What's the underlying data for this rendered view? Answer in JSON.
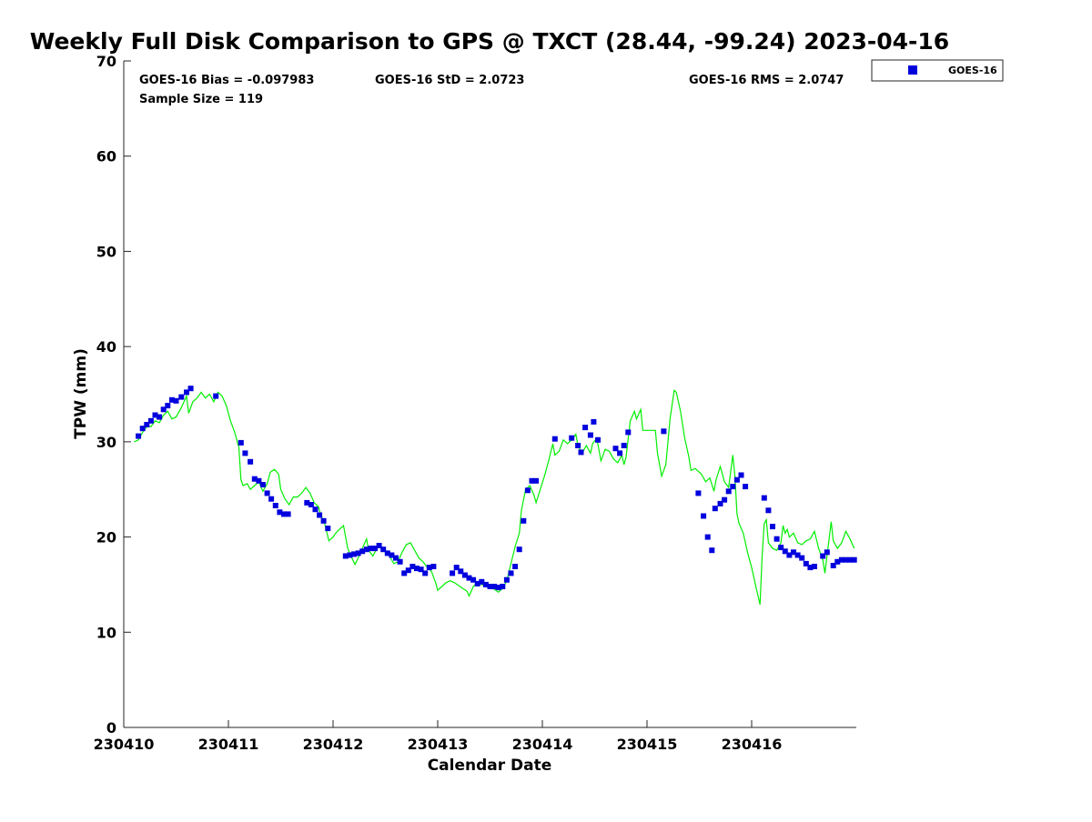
{
  "chart_data": {
    "type": "scatter",
    "title": "Weekly Full Disk Comparison to GPS @ TXCT (28.44, -99.24) 2023-04-16",
    "xlabel": "Calendar Date",
    "ylabel": "TPW (mm)",
    "xlim": [
      0,
      7
    ],
    "ylim": [
      0,
      70
    ],
    "x_tick_labels": [
      "230410",
      "230411",
      "230412",
      "230413",
      "230414",
      "230415",
      "230416"
    ],
    "y_ticks": [
      0,
      10,
      20,
      30,
      40,
      50,
      60,
      70
    ],
    "grid": false,
    "legend_placement": "top-right, outside plot",
    "stats": {
      "bias": "GOES-16 Bias = -0.097983",
      "std": "GOES-16 StD = 2.0723",
      "rms": "GOES-16 RMS = 2.0747",
      "sample": "Sample Size = 119"
    },
    "series": [
      {
        "name": "GOES-16",
        "kind": "markers",
        "color": "#0000dd",
        "points": [
          [
            0.14,
            30.6
          ],
          [
            0.18,
            31.4
          ],
          [
            0.22,
            31.8
          ],
          [
            0.26,
            32.2
          ],
          [
            0.3,
            32.8
          ],
          [
            0.34,
            32.6
          ],
          [
            0.38,
            33.4
          ],
          [
            0.42,
            33.8
          ],
          [
            0.46,
            34.4
          ],
          [
            0.5,
            34.3
          ],
          [
            0.55,
            34.7
          ],
          [
            0.6,
            35.2
          ],
          [
            0.64,
            35.6
          ],
          [
            0.88,
            34.8
          ],
          [
            1.12,
            29.9
          ],
          [
            1.16,
            28.8
          ],
          [
            1.21,
            27.9
          ],
          [
            1.25,
            26.1
          ],
          [
            1.29,
            25.9
          ],
          [
            1.33,
            25.5
          ],
          [
            1.37,
            24.6
          ],
          [
            1.41,
            24.0
          ],
          [
            1.45,
            23.3
          ],
          [
            1.49,
            22.6
          ],
          [
            1.53,
            22.4
          ],
          [
            1.57,
            22.4
          ],
          [
            1.75,
            23.6
          ],
          [
            1.79,
            23.4
          ],
          [
            1.83,
            22.9
          ],
          [
            1.87,
            22.3
          ],
          [
            1.91,
            21.7
          ],
          [
            1.95,
            20.9
          ],
          [
            2.12,
            18.0
          ],
          [
            2.16,
            18.1
          ],
          [
            2.2,
            18.2
          ],
          [
            2.24,
            18.3
          ],
          [
            2.28,
            18.5
          ],
          [
            2.32,
            18.7
          ],
          [
            2.36,
            18.8
          ],
          [
            2.4,
            18.8
          ],
          [
            2.44,
            19.1
          ],
          [
            2.48,
            18.7
          ],
          [
            2.52,
            18.3
          ],
          [
            2.56,
            18.1
          ],
          [
            2.6,
            17.8
          ],
          [
            2.64,
            17.4
          ],
          [
            2.68,
            16.2
          ],
          [
            2.72,
            16.5
          ],
          [
            2.76,
            16.9
          ],
          [
            2.8,
            16.7
          ],
          [
            2.84,
            16.6
          ],
          [
            2.88,
            16.2
          ],
          [
            2.92,
            16.8
          ],
          [
            2.96,
            16.9
          ],
          [
            3.14,
            16.2
          ],
          [
            3.18,
            16.8
          ],
          [
            3.22,
            16.4
          ],
          [
            3.26,
            16.0
          ],
          [
            3.3,
            15.7
          ],
          [
            3.34,
            15.5
          ],
          [
            3.38,
            15.1
          ],
          [
            3.42,
            15.3
          ],
          [
            3.46,
            15.0
          ],
          [
            3.5,
            14.8
          ],
          [
            3.54,
            14.8
          ],
          [
            3.58,
            14.7
          ],
          [
            3.62,
            14.8
          ],
          [
            3.66,
            15.5
          ],
          [
            3.7,
            16.2
          ],
          [
            3.74,
            16.9
          ],
          [
            3.78,
            18.7
          ],
          [
            3.82,
            21.7
          ],
          [
            3.86,
            24.9
          ],
          [
            3.9,
            25.9
          ],
          [
            3.94,
            25.9
          ],
          [
            4.12,
            30.3
          ],
          [
            4.28,
            30.4
          ],
          [
            4.34,
            29.6
          ],
          [
            4.37,
            28.9
          ],
          [
            4.41,
            31.5
          ],
          [
            4.46,
            30.7
          ],
          [
            4.49,
            32.1
          ],
          [
            4.53,
            30.2
          ],
          [
            4.7,
            29.3
          ],
          [
            4.74,
            28.8
          ],
          [
            4.78,
            29.6
          ],
          [
            4.82,
            31.0
          ],
          [
            5.16,
            31.1
          ],
          [
            5.49,
            24.6
          ],
          [
            5.54,
            22.2
          ],
          [
            5.58,
            20.0
          ],
          [
            5.62,
            18.6
          ],
          [
            5.65,
            23.0
          ],
          [
            5.7,
            23.5
          ],
          [
            5.74,
            23.9
          ],
          [
            5.78,
            24.8
          ],
          [
            5.82,
            25.3
          ],
          [
            5.86,
            26.0
          ],
          [
            5.9,
            26.5
          ],
          [
            5.94,
            25.3
          ],
          [
            6.12,
            24.1
          ],
          [
            6.16,
            22.8
          ],
          [
            6.2,
            21.1
          ],
          [
            6.24,
            19.8
          ],
          [
            6.28,
            18.9
          ],
          [
            6.32,
            18.5
          ],
          [
            6.36,
            18.1
          ],
          [
            6.4,
            18.4
          ],
          [
            6.44,
            18.1
          ],
          [
            6.48,
            17.8
          ],
          [
            6.52,
            17.2
          ],
          [
            6.56,
            16.8
          ],
          [
            6.6,
            16.9
          ],
          [
            6.68,
            18.0
          ],
          [
            6.72,
            18.4
          ],
          [
            6.78,
            17.0
          ],
          [
            6.82,
            17.4
          ],
          [
            6.86,
            17.6
          ],
          [
            6.9,
            17.6
          ],
          [
            6.94,
            17.6
          ],
          [
            6.98,
            17.6
          ]
        ]
      },
      {
        "name": "",
        "kind": "line",
        "color": "#00ee00",
        "points": [
          [
            0.1,
            30.0
          ],
          [
            0.14,
            30.2
          ],
          [
            0.18,
            31.0
          ],
          [
            0.22,
            31.6
          ],
          [
            0.26,
            31.6
          ],
          [
            0.3,
            32.2
          ],
          [
            0.34,
            32.0
          ],
          [
            0.38,
            32.8
          ],
          [
            0.42,
            33.2
          ],
          [
            0.46,
            32.4
          ],
          [
            0.5,
            32.6
          ],
          [
            0.55,
            33.6
          ],
          [
            0.6,
            34.8
          ],
          [
            0.62,
            33.0
          ],
          [
            0.66,
            34.2
          ],
          [
            0.7,
            34.6
          ],
          [
            0.74,
            35.2
          ],
          [
            0.78,
            34.6
          ],
          [
            0.82,
            35.0
          ],
          [
            0.86,
            34.2
          ],
          [
            0.9,
            35.2
          ],
          [
            0.94,
            34.8
          ],
          [
            0.98,
            33.8
          ],
          [
            1.02,
            32.2
          ],
          [
            1.06,
            31.0
          ],
          [
            1.1,
            29.4
          ],
          [
            1.12,
            26.0
          ],
          [
            1.14,
            25.4
          ],
          [
            1.18,
            25.6
          ],
          [
            1.21,
            25.0
          ],
          [
            1.25,
            25.4
          ],
          [
            1.29,
            25.8
          ],
          [
            1.33,
            24.8
          ],
          [
            1.37,
            25.6
          ],
          [
            1.4,
            26.8
          ],
          [
            1.44,
            27.1
          ],
          [
            1.48,
            26.6
          ],
          [
            1.5,
            25.0
          ],
          [
            1.54,
            24.0
          ],
          [
            1.58,
            23.4
          ],
          [
            1.62,
            24.2
          ],
          [
            1.66,
            24.2
          ],
          [
            1.7,
            24.6
          ],
          [
            1.74,
            25.2
          ],
          [
            1.78,
            24.6
          ],
          [
            1.82,
            23.6
          ],
          [
            1.86,
            23.2
          ],
          [
            1.88,
            22.4
          ],
          [
            1.92,
            21.4
          ],
          [
            1.96,
            19.6
          ],
          [
            2.0,
            20.0
          ],
          [
            2.04,
            20.6
          ],
          [
            2.1,
            21.2
          ],
          [
            2.14,
            18.8
          ],
          [
            2.18,
            17.8
          ],
          [
            2.21,
            17.1
          ],
          [
            2.24,
            17.8
          ],
          [
            2.28,
            18.8
          ],
          [
            2.32,
            19.8
          ],
          [
            2.34,
            18.6
          ],
          [
            2.38,
            18.0
          ],
          [
            2.42,
            18.8
          ],
          [
            2.46,
            19.0
          ],
          [
            2.5,
            18.4
          ],
          [
            2.54,
            18.0
          ],
          [
            2.58,
            17.2
          ],
          [
            2.62,
            17.4
          ],
          [
            2.66,
            18.4
          ],
          [
            2.7,
            19.2
          ],
          [
            2.74,
            19.4
          ],
          [
            2.78,
            18.6
          ],
          [
            2.82,
            17.8
          ],
          [
            2.86,
            17.4
          ],
          [
            2.9,
            16.8
          ],
          [
            2.94,
            16.4
          ],
          [
            2.98,
            15.2
          ],
          [
            3.0,
            14.4
          ],
          [
            3.04,
            14.8
          ],
          [
            3.08,
            15.2
          ],
          [
            3.12,
            15.4
          ],
          [
            3.16,
            15.2
          ],
          [
            3.2,
            14.9
          ],
          [
            3.24,
            14.6
          ],
          [
            3.28,
            14.3
          ],
          [
            3.3,
            13.8
          ],
          [
            3.34,
            14.8
          ],
          [
            3.38,
            15.2
          ],
          [
            3.42,
            15.0
          ],
          [
            3.46,
            14.9
          ],
          [
            3.5,
            14.9
          ],
          [
            3.54,
            14.5
          ],
          [
            3.58,
            14.2
          ],
          [
            3.62,
            14.6
          ],
          [
            3.66,
            15.4
          ],
          [
            3.7,
            17.2
          ],
          [
            3.74,
            19.0
          ],
          [
            3.78,
            20.4
          ],
          [
            3.8,
            22.8
          ],
          [
            3.84,
            25.0
          ],
          [
            3.88,
            25.4
          ],
          [
            3.92,
            24.4
          ],
          [
            3.94,
            23.6
          ],
          [
            3.98,
            25.0
          ],
          [
            4.02,
            26.4
          ],
          [
            4.06,
            28.0
          ],
          [
            4.1,
            29.8
          ],
          [
            4.12,
            28.6
          ],
          [
            4.16,
            29.0
          ],
          [
            4.2,
            30.2
          ],
          [
            4.24,
            29.8
          ],
          [
            4.28,
            30.2
          ],
          [
            4.32,
            30.8
          ],
          [
            4.34,
            29.6
          ],
          [
            4.38,
            28.8
          ],
          [
            4.42,
            29.6
          ],
          [
            4.46,
            28.8
          ],
          [
            4.48,
            29.8
          ],
          [
            4.52,
            30.4
          ],
          [
            4.56,
            28.0
          ],
          [
            4.6,
            29.2
          ],
          [
            4.64,
            29.0
          ],
          [
            4.68,
            28.2
          ],
          [
            4.72,
            27.8
          ],
          [
            4.76,
            28.6
          ],
          [
            4.78,
            27.6
          ],
          [
            4.8,
            28.4
          ],
          [
            4.84,
            32.2
          ],
          [
            4.88,
            33.2
          ],
          [
            4.9,
            32.4
          ],
          [
            4.94,
            33.4
          ],
          [
            4.96,
            31.2
          ],
          [
            5.0,
            31.2
          ],
          [
            5.04,
            31.2
          ],
          [
            5.08,
            31.2
          ],
          [
            5.1,
            28.8
          ],
          [
            5.14,
            26.4
          ],
          [
            5.18,
            27.6
          ],
          [
            5.22,
            32.4
          ],
          [
            5.26,
            35.4
          ],
          [
            5.28,
            35.2
          ],
          [
            5.32,
            33.2
          ],
          [
            5.36,
            30.4
          ],
          [
            5.4,
            28.4
          ],
          [
            5.42,
            27.0
          ],
          [
            5.46,
            27.2
          ],
          [
            5.5,
            26.8
          ],
          [
            5.52,
            26.6
          ],
          [
            5.56,
            25.8
          ],
          [
            5.6,
            26.2
          ],
          [
            5.64,
            24.8
          ],
          [
            5.66,
            26.0
          ],
          [
            5.7,
            27.4
          ],
          [
            5.74,
            25.8
          ],
          [
            5.78,
            25.2
          ],
          [
            5.82,
            28.6
          ],
          [
            5.84,
            26.4
          ],
          [
            5.86,
            22.4
          ],
          [
            5.88,
            21.4
          ],
          [
            5.92,
            20.4
          ],
          [
            5.96,
            18.4
          ],
          [
            6.0,
            16.8
          ],
          [
            6.04,
            14.8
          ],
          [
            6.08,
            12.9
          ],
          [
            6.1,
            18.0
          ],
          [
            6.12,
            21.4
          ],
          [
            6.14,
            21.8
          ],
          [
            6.16,
            19.4
          ],
          [
            6.2,
            18.8
          ],
          [
            6.24,
            18.6
          ],
          [
            6.28,
            19.4
          ],
          [
            6.3,
            21.2
          ],
          [
            6.32,
            20.4
          ],
          [
            6.34,
            20.8
          ],
          [
            6.36,
            20.0
          ],
          [
            6.4,
            20.4
          ],
          [
            6.44,
            19.4
          ],
          [
            6.48,
            19.2
          ],
          [
            6.52,
            19.6
          ],
          [
            6.56,
            19.8
          ],
          [
            6.6,
            20.6
          ],
          [
            6.64,
            18.8
          ],
          [
            6.68,
            17.6
          ],
          [
            6.7,
            16.2
          ],
          [
            6.72,
            18.0
          ],
          [
            6.76,
            21.6
          ],
          [
            6.78,
            19.6
          ],
          [
            6.82,
            18.8
          ],
          [
            6.86,
            19.4
          ],
          [
            6.9,
            20.6
          ],
          [
            6.94,
            19.8
          ],
          [
            6.98,
            18.8
          ]
        ]
      }
    ]
  }
}
